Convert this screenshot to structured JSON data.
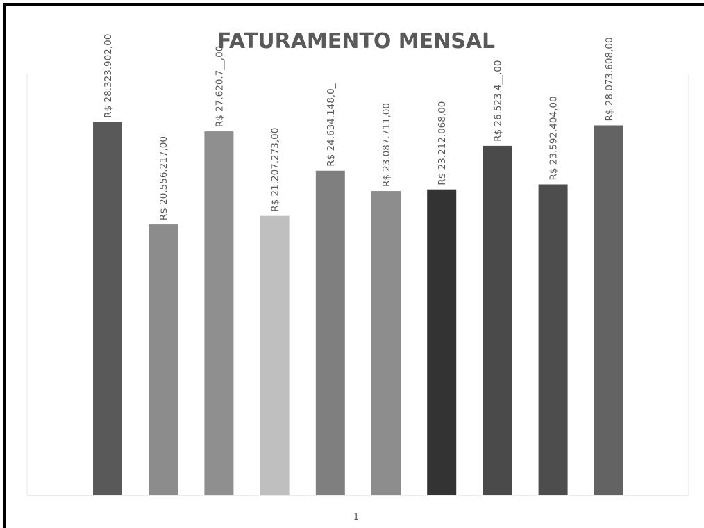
{
  "chart_data": {
    "type": "bar",
    "title": "FATURAMENTO MENSAL",
    "categories": [
      "1"
    ],
    "series": [
      {
        "values": [
          28323902.0
        ],
        "color": "#595959",
        "label": "R$ 28.323.902,00"
      },
      {
        "values": [
          20556217.0
        ],
        "color": "#8c8c8c",
        "label": "R$ 20.556.217,00"
      },
      {
        "values": [
          27620700.0
        ],
        "color": "#8f8f8f",
        "label": "R$ 27.620.7__,00"
      },
      {
        "values": [
          21207273.0
        ],
        "color": "#bfbfbf",
        "label": "R$ 21.207.273,00"
      },
      {
        "values": [
          24634148.0
        ],
        "color": "#7f7f7f",
        "label": "R$ 24.634.148,0_"
      },
      {
        "values": [
          23087711.0
        ],
        "color": "#8d8d8d",
        "label": "R$ 23.087.711,00"
      },
      {
        "values": [
          23212068.0
        ],
        "color": "#333333",
        "label": "R$ 23.212.068,00"
      },
      {
        "values": [
          26523400.0
        ],
        "color": "#4a4a4a",
        "label": "R$ 26.523.4__,00"
      },
      {
        "values": [
          23592404.0
        ],
        "color": "#4d4d4d",
        "label": "R$ 23.592.404,00"
      },
      {
        "values": [
          28073608.0
        ],
        "color": "#636363",
        "label": "R$ 28.073.608,00"
      }
    ],
    "ylim": [
      0,
      32000000
    ],
    "grid": false,
    "legend": "none"
  }
}
